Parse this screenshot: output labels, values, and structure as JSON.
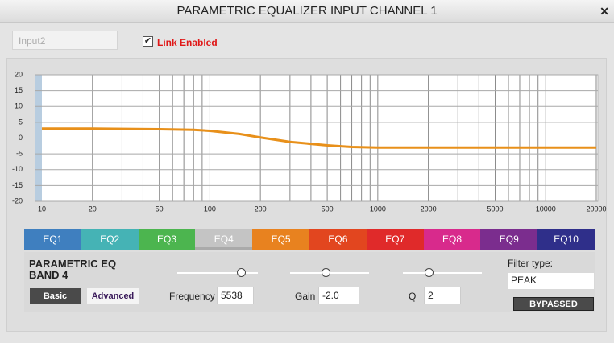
{
  "window": {
    "title": "PARAMETRIC EQUALIZER INPUT CHANNEL 1",
    "close": "✕"
  },
  "input_name": "Input2",
  "link": {
    "label": "Link Enabled",
    "checked": true
  },
  "chart_data": {
    "type": "line",
    "x": [
      10,
      20,
      50,
      80,
      100,
      150,
      200,
      300,
      500,
      700,
      1000,
      2000,
      5000,
      10000,
      20000
    ],
    "series": [
      {
        "color": "#e8901a",
        "values": [
          3,
          3,
          2.8,
          2.6,
          2.3,
          1.3,
          0.2,
          -1.2,
          -2.3,
          -2.8,
          -3,
          -3,
          -3,
          -3,
          -3
        ]
      }
    ],
    "xlim": [
      10,
      20000
    ],
    "ylim": [
      -20,
      20
    ],
    "xticks": [
      10,
      20,
      50,
      100,
      200,
      500,
      1000,
      2000,
      5000,
      10000,
      20000
    ],
    "yticks": [
      -20,
      -15,
      -10,
      -5,
      0,
      5,
      10,
      15,
      20
    ],
    "x_grid": [
      20,
      30,
      40,
      50,
      60,
      70,
      80,
      90,
      100,
      200,
      300,
      400,
      500,
      600,
      700,
      800,
      900,
      1000,
      2000,
      3000,
      4000,
      5000,
      6000,
      7000,
      8000,
      9000,
      10000,
      20000
    ],
    "log_x": true,
    "grid": true
  },
  "tabs": [
    {
      "label": "EQ1",
      "color": "#3f7fbf"
    },
    {
      "label": "EQ2",
      "color": "#45b3b5"
    },
    {
      "label": "EQ3",
      "color": "#4cb54f"
    },
    {
      "label": "EQ4",
      "color": "#c4c4c4"
    },
    {
      "label": "EQ5",
      "color": "#e8821f"
    },
    {
      "label": "EQ6",
      "color": "#e2461f"
    },
    {
      "label": "EQ7",
      "color": "#e02a2a"
    },
    {
      "label": "EQ8",
      "color": "#d82a8c"
    },
    {
      "label": "EQ9",
      "color": "#7b2d8e"
    },
    {
      "label": "EQ10",
      "color": "#2f2f8a"
    }
  ],
  "selected_tab": 3,
  "band": {
    "title": "PARAMETRIC EQ BAND 4",
    "basic": "Basic",
    "advanced": "Advanced",
    "frequency_label": "Frequency",
    "frequency": "5538",
    "gain_label": "Gain",
    "gain": "-2.0",
    "q_label": "Q",
    "q": "2",
    "filter_type_label": "Filter type:",
    "filter_type": "PEAK",
    "bypass": "BYPASSED"
  }
}
